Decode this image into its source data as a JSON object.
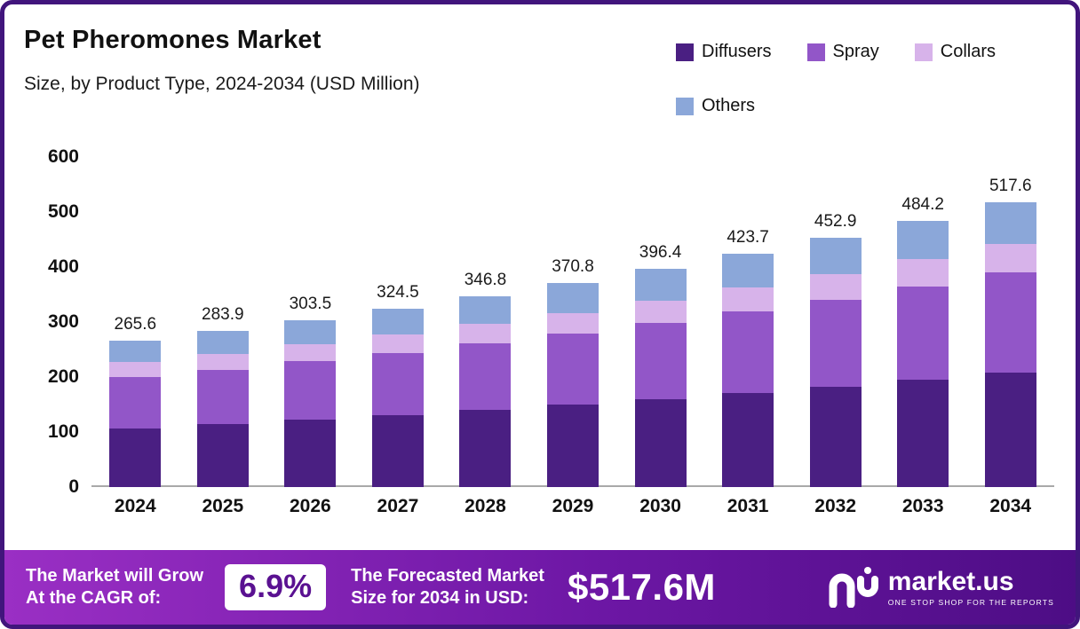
{
  "header": {
    "title": "Pet Pheromones Market",
    "subtitle": "Size, by Product Type, 2024-2034 (USD Million)"
  },
  "chart_data": {
    "type": "bar",
    "stacked": true,
    "title": "Pet Pheromones Market Size, by Product Type, 2024-2034 (USD Million)",
    "categories": [
      "2024",
      "2025",
      "2026",
      "2027",
      "2028",
      "2029",
      "2030",
      "2031",
      "2032",
      "2033",
      "2034"
    ],
    "series": [
      {
        "name": "Diffusers",
        "color": "#4a1f82",
        "values": [
          107.0,
          114.4,
          122.3,
          130.8,
          139.8,
          149.4,
          159.7,
          170.8,
          182.5,
          195.1,
          208.6
        ]
      },
      {
        "name": "Spray",
        "color": "#9256c8",
        "values": [
          93.0,
          99.4,
          106.2,
          113.6,
          121.4,
          129.8,
          138.7,
          148.3,
          158.5,
          169.5,
          181.2
        ]
      },
      {
        "name": "Collars",
        "color": "#d7b3ea",
        "values": [
          27.1,
          29.0,
          31.0,
          33.1,
          35.4,
          37.8,
          40.4,
          43.2,
          46.2,
          49.4,
          52.8
        ]
      },
      {
        "name": "Others",
        "color": "#8ba7d9",
        "values": [
          38.5,
          41.1,
          44.0,
          47.0,
          50.2,
          53.8,
          57.6,
          61.4,
          65.7,
          70.2,
          75.0
        ]
      }
    ],
    "totals": [
      "265.6",
      "283.9",
      "303.5",
      "324.5",
      "346.8",
      "370.8",
      "396.4",
      "423.7",
      "452.9",
      "484.2",
      "517.6"
    ],
    "ylim": [
      0,
      600
    ],
    "yticks": [
      0,
      100,
      200,
      300,
      400,
      500,
      600
    ],
    "legend_position": "top-right",
    "grid": false
  },
  "banner": {
    "cagr_label_line1": "The Market will Grow",
    "cagr_label_line2": "At the CAGR of:",
    "cagr_value": "6.9%",
    "forecast_label_line1": "The Forecasted Market",
    "forecast_label_line2": "Size for 2034 in USD:",
    "forecast_value": "$517.6M",
    "brand_name": "market.us",
    "brand_tagline": "ONE STOP SHOP FOR THE REPORTS"
  },
  "colors": {
    "frame_border": "#41157c",
    "banner_gradient_start": "#9a2fc4",
    "banner_gradient_end": "#4d0d85",
    "cagr_value_color": "#5a1191",
    "axis_line": "#a9a9a9"
  }
}
